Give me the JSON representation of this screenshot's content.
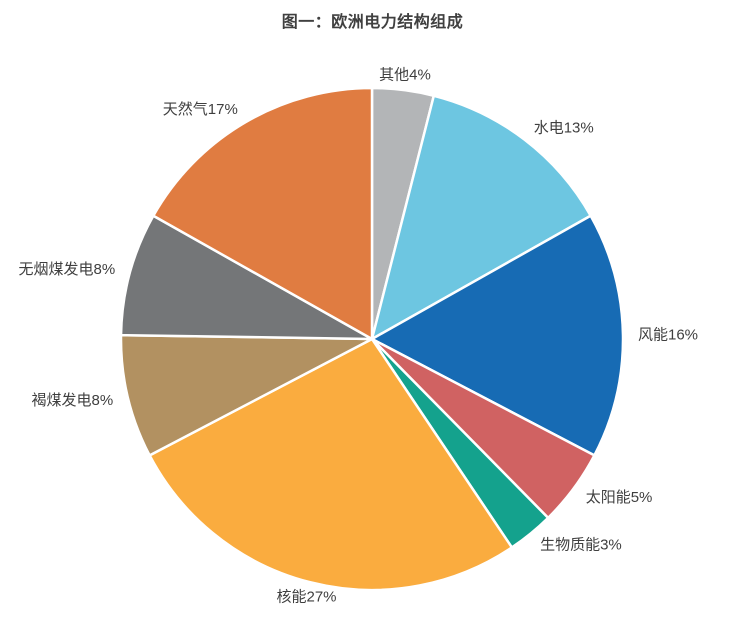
{
  "chart_data": {
    "type": "pie",
    "title": "图一：欧洲电力结构组成",
    "direction": "clockwise",
    "start_at": "12-oclock",
    "values_sum": 101,
    "title_color": "#404040",
    "label_color": "#3F3F3F",
    "border_color": "#FFFFFF",
    "slices": [
      {
        "label": "其他",
        "value": 4,
        "display": "其他4%",
        "color": "#B3B5B7"
      },
      {
        "label": "水电",
        "value": 13,
        "display": "水电13%",
        "color": "#6DC6E1"
      },
      {
        "label": "风能",
        "value": 16,
        "display": "风能16%",
        "color": "#176BB4"
      },
      {
        "label": "太阳能",
        "value": 5,
        "display": "太阳能5%",
        "color": "#D06262"
      },
      {
        "label": "生物质能",
        "value": 3,
        "display": "生物质能3%",
        "color": "#14A28D"
      },
      {
        "label": "核能",
        "value": 27,
        "display": "核能27%",
        "color": "#FAAC3F"
      },
      {
        "label": "褐煤发电",
        "value": 8,
        "display": "褐煤发电8%",
        "color": "#B29161"
      },
      {
        "label": "无烟煤发电",
        "value": 8,
        "display": "无烟煤发电8%",
        "color": "#747678"
      },
      {
        "label": "天然气",
        "value": 17,
        "display": "天然气17%",
        "color": "#E07C41"
      }
    ]
  }
}
